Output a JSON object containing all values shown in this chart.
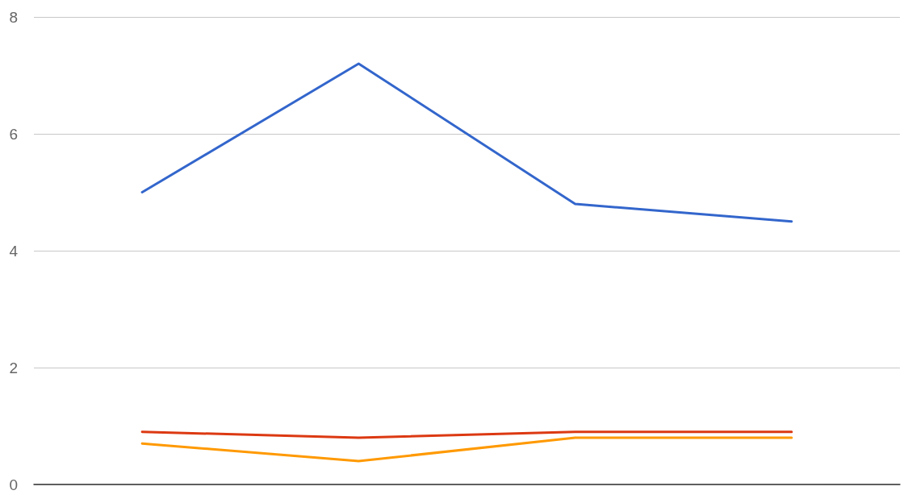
{
  "chart_data": {
    "type": "line",
    "categories": [
      null,
      null,
      null,
      null
    ],
    "series": [
      {
        "color": "#3366cc",
        "values": [
          5.0,
          7.2,
          4.8,
          4.5
        ]
      },
      {
        "color": "#dc3912",
        "values": [
          0.9,
          0.8,
          0.9,
          0.9
        ]
      },
      {
        "color": "#ff9900",
        "values": [
          0.7,
          0.4,
          0.8,
          0.8
        ]
      }
    ],
    "ylim": [
      0,
      8
    ],
    "yticks": [
      0,
      2,
      4,
      6,
      8
    ],
    "grid": "y",
    "marker": "none",
    "line_style": "solid"
  }
}
